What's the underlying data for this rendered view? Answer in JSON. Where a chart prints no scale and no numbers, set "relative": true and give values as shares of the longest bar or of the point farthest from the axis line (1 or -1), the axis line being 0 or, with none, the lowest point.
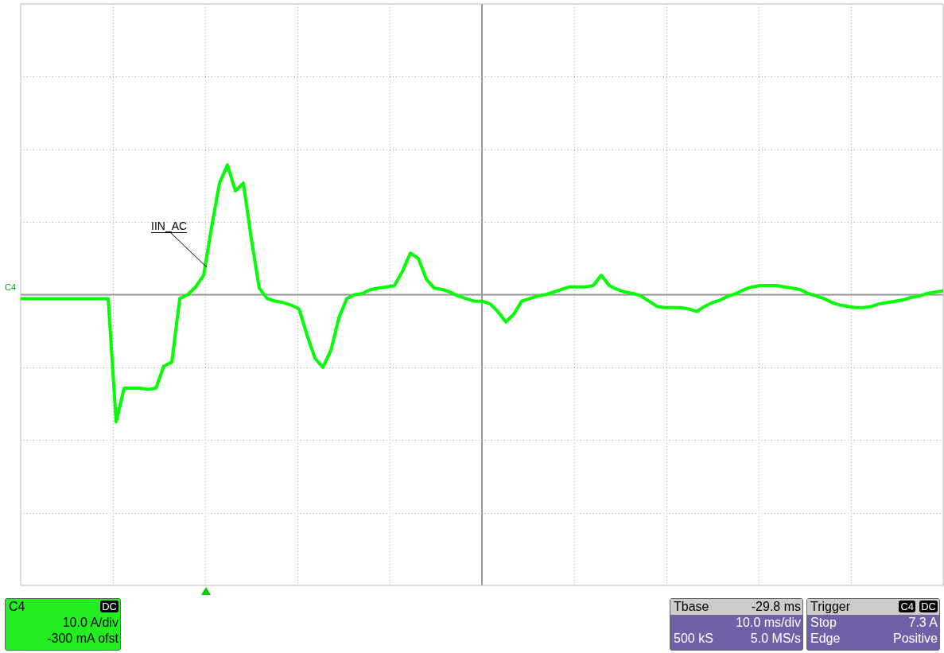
{
  "chart_data": {
    "type": "line",
    "relative": true,
    "grid": true,
    "legend": false,
    "marker": "none",
    "line_style": "solid",
    "categories": [
      null,
      null,
      null,
      null,
      null,
      null,
      null,
      null,
      null,
      null,
      null,
      null,
      null,
      null,
      null,
      null,
      null,
      null,
      null,
      null,
      null,
      null,
      null,
      null,
      null,
      null,
      null,
      null,
      null,
      null,
      null,
      null,
      null,
      null,
      null,
      null,
      null,
      null,
      null,
      null,
      null,
      null,
      null,
      null,
      null,
      null,
      null,
      null,
      null,
      null,
      null,
      null,
      null,
      null,
      null,
      null,
      null,
      null,
      null,
      null,
      null,
      null,
      null,
      null,
      null,
      null,
      null,
      null,
      null,
      null,
      null,
      null,
      null,
      null,
      null,
      null,
      null,
      null,
      null,
      null,
      null,
      null,
      null,
      null,
      null,
      null,
      null,
      null,
      null,
      null,
      null,
      null,
      null,
      null,
      null,
      null,
      null,
      null,
      null,
      null,
      null,
      null,
      null,
      null,
      null,
      null,
      null,
      null,
      null,
      null,
      null,
      null,
      null,
      null,
      null,
      null,
      null
    ],
    "series": [
      {
        "color": "#00ff00",
        "values": [
          -0.03,
          -0.03,
          -0.03,
          -0.03,
          -0.03,
          -0.03,
          -0.03,
          -0.03,
          -0.03,
          -0.03,
          -0.03,
          -0.03,
          -0.98,
          -0.72,
          -0.72,
          -0.72,
          -0.73,
          -0.72,
          -0.55,
          -0.52,
          -0.03,
          0,
          0.06,
          0.15,
          0.52,
          0.86,
          1,
          0.8,
          0.86,
          0.43,
          0.05,
          -0.03,
          -0.05,
          -0.06,
          -0.08,
          -0.11,
          -0.31,
          -0.49,
          -0.56,
          -0.43,
          -0.18,
          -0.03,
          0,
          0.01,
          0.04,
          0.05,
          0.06,
          0.07,
          0.18,
          0.32,
          0.28,
          0.12,
          0.05,
          0.04,
          0.02,
          -0.01,
          -0.03,
          -0.05,
          -0.05,
          -0.07,
          -0.13,
          -0.21,
          -0.15,
          -0.05,
          -0.03,
          -0.01,
          0,
          0.02,
          0.04,
          0.06,
          0.06,
          0.06,
          0.07,
          0.15,
          0.07,
          0.04,
          0.02,
          0.01,
          -0.01,
          -0.05,
          -0.09,
          -0.1,
          -0.1,
          -0.1,
          -0.11,
          -0.13,
          -0.09,
          -0.06,
          -0.04,
          -0.01,
          0.01,
          0.04,
          0.06,
          0.07,
          0.07,
          0.07,
          0.06,
          0.05,
          0.04,
          0.01,
          -0.01,
          -0.03,
          -0.06,
          -0.08,
          -0.09,
          -0.1,
          -0.1,
          -0.09,
          -0.07,
          -0.06,
          -0.05,
          -0.04,
          -0.02,
          -0.01,
          0.01,
          0.02,
          0.03
        ]
      }
    ],
    "annotations": [
      "IIN_AC",
      "C4",
      "C4",
      "DC",
      "10.0 A/div",
      "-300 mA ofst",
      "Tbase",
      "-29.8 ms",
      "10.0 ms/div",
      "500 kS",
      "5.0 MS/s",
      "Trigger",
      "C4",
      "DC",
      "Stop",
      "7.3 A",
      "Edge",
      "Positive"
    ]
  }
}
